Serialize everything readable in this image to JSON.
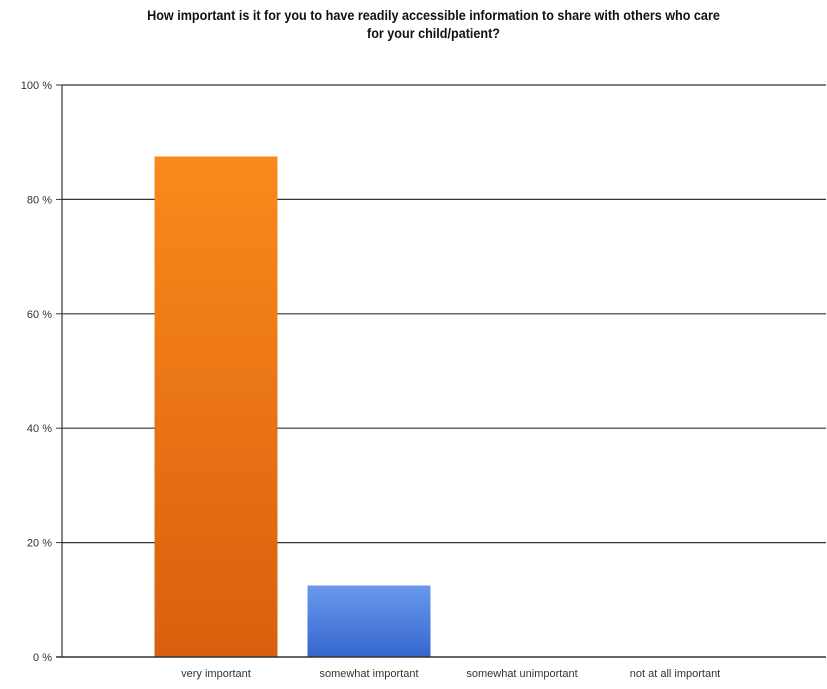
{
  "chart_data": {
    "type": "bar",
    "title_lines": [
      "How important is it for you to have readily accessible information to share with others who care",
      "for your child/patient?"
    ],
    "categories": [
      "very important",
      "somewhat important",
      "somewhat unimportant",
      "not at all important"
    ],
    "values": [
      87.5,
      12.5,
      0,
      0
    ],
    "unit": "%",
    "ylim": [
      0,
      100
    ],
    "yticks": [
      0,
      20,
      40,
      60,
      80,
      100
    ],
    "ytick_labels": [
      "0 %",
      "20 %",
      "40 %",
      "60 %",
      "80 %",
      "100 %"
    ],
    "grid": true,
    "legend": "none",
    "bar_colors": [
      {
        "top": "#fb8a1c",
        "bottom": "#d95f0e"
      },
      {
        "top": "#6a99ee",
        "bottom": "#3566cd"
      },
      {
        "top": "#6a99ee",
        "bottom": "#3566cd"
      },
      {
        "top": "#6a99ee",
        "bottom": "#3566cd"
      }
    ],
    "axis_color": "#333333",
    "grid_color": "#333333"
  }
}
